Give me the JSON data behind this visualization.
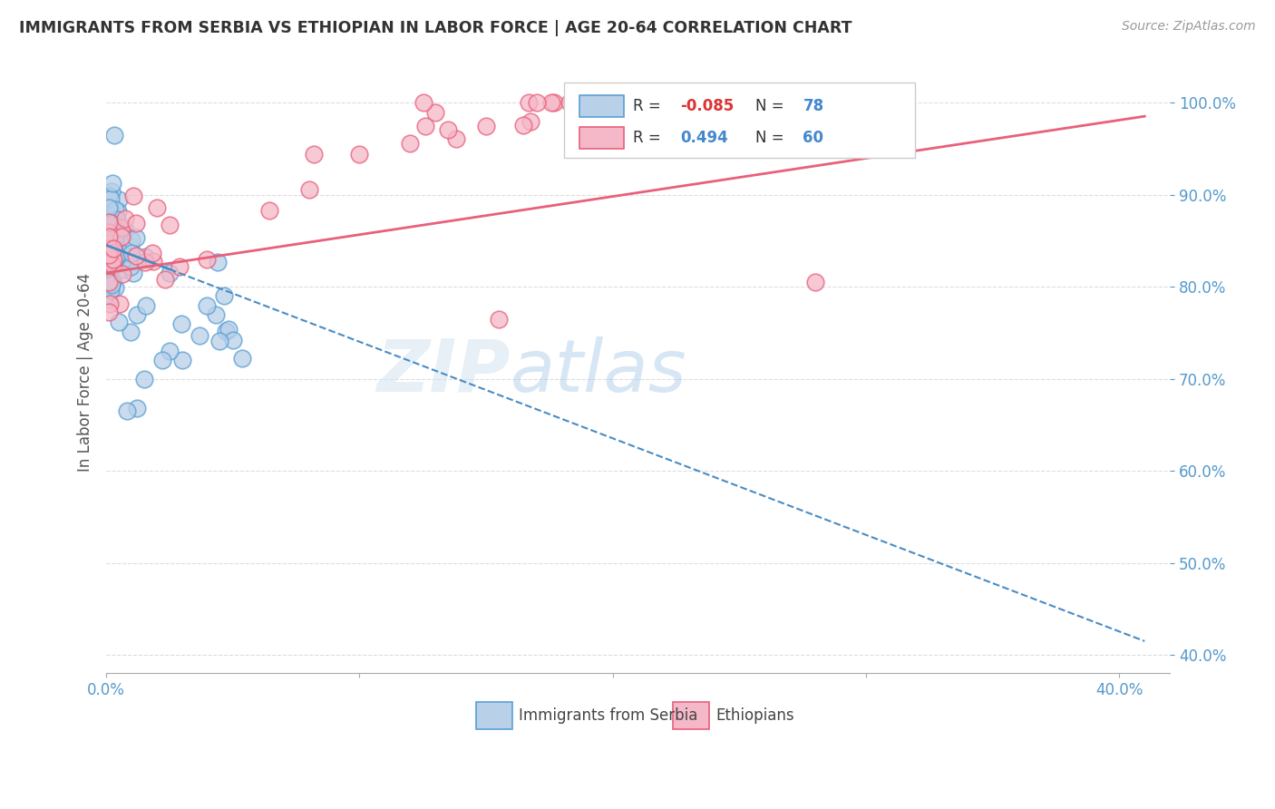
{
  "title": "IMMIGRANTS FROM SERBIA VS ETHIOPIAN IN LABOR FORCE | AGE 20-64 CORRELATION CHART",
  "source": "Source: ZipAtlas.com",
  "ylabel": "In Labor Force | Age 20-64",
  "xlim": [
    0.0,
    0.42
  ],
  "ylim": [
    0.38,
    1.035
  ],
  "serbia_R": -0.085,
  "serbia_N": 78,
  "ethiopia_R": 0.494,
  "ethiopia_N": 60,
  "serbia_face_color": "#b8d0e8",
  "ethiopia_face_color": "#f5b8c8",
  "serbia_edge_color": "#5a9fd4",
  "ethiopia_edge_color": "#e8607a",
  "serbia_line_color": "#4a8cc4",
  "ethiopia_line_color": "#e8607a",
  "legend_label_1": "Immigrants from Serbia",
  "legend_label_2": "Ethiopians",
  "watermark_zip": "ZIP",
  "watermark_atlas": "atlas",
  "ytick_vals": [
    0.4,
    0.5,
    0.6,
    0.7,
    0.8,
    0.9,
    1.0
  ],
  "ytick_labels": [
    "40.0%",
    "50.0%",
    "60.0%",
    "70.0%",
    "80.0%",
    "90.0%",
    "100.0%"
  ],
  "xtick_vals": [
    0.0,
    0.1,
    0.2,
    0.3,
    0.4
  ],
  "xtick_labels": [
    "0.0%",
    "",
    "",
    "",
    "40.0%"
  ],
  "grid_color": "#dddddd",
  "text_color": "#5599cc",
  "title_color": "#333333",
  "r_neg_color": "#dd3333",
  "r_pos_color": "#4488cc",
  "n_color": "#4488cc"
}
